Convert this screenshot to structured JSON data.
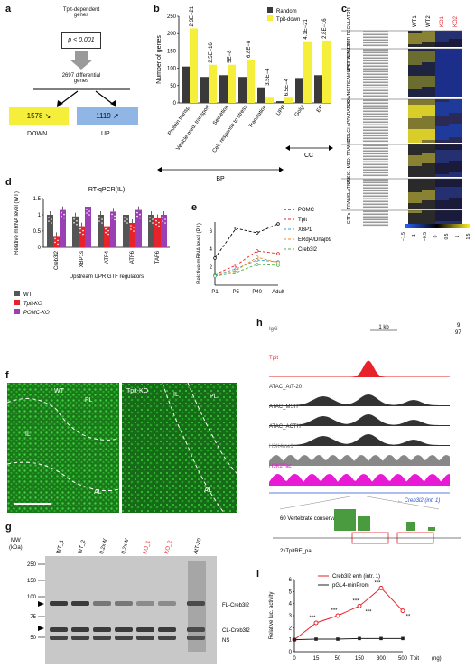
{
  "panel_labels": {
    "a": "a",
    "b": "b",
    "c": "c",
    "d": "d",
    "e": "e",
    "f": "f",
    "g": "g",
    "h": "h",
    "i": "i"
  },
  "panel_a": {
    "title_line1": "Tpit-dependent",
    "title_line2": "genes",
    "pvalue": "p < 0.001",
    "differential": "2697 differential",
    "differential2": "genes",
    "down_count": "1578 ↘",
    "up_count": "1119 ↗",
    "down_label": "DOWN",
    "up_label": "UP",
    "colors": {
      "down": "#f5ef3b",
      "up": "#8fb6e4"
    }
  },
  "chart_data": [
    {
      "type": "bar",
      "panel": "b",
      "categories": [
        "Protein transp.",
        "Vesicle-med. transport",
        "Secretion",
        "Cell. response to stress",
        "Translation",
        "UPR",
        "Golgi",
        "ER"
      ],
      "series": [
        {
          "name": "Random",
          "values": [
            105,
            75,
            80,
            75,
            45,
            5,
            72,
            80
          ],
          "color": "#3a3a3a"
        },
        {
          "name": "Tpit-down",
          "values": [
            215,
            110,
            110,
            125,
            15,
            15,
            178,
            180
          ],
          "color": "#f5ef3b"
        }
      ],
      "pvalues": [
        "2.3E−21",
        "2.5E−16",
        "5E−8",
        "6.8E−8",
        "3.5E−4",
        "6.5E−4",
        "4.1E−21",
        "2.8E−16"
      ],
      "ylabel": "Number of genes",
      "ylim": [
        0,
        250
      ],
      "yticks": [
        0,
        50,
        100,
        150,
        200,
        250
      ],
      "groups": [
        {
          "label": "BP"
        },
        {
          "label": "CC"
        }
      ],
      "legend": "top-right"
    },
    {
      "type": "bar",
      "panel": "d",
      "title": "RT-qPCR(IL)",
      "categories": [
        "Creb3l2",
        "XBP1s",
        "ATF4",
        "ATF6",
        "TAF6"
      ],
      "series": [
        {
          "name": "WT",
          "values": [
            1.0,
            0.95,
            1.0,
            1.0,
            1.0
          ],
          "color": "#555555"
        },
        {
          "name": "Tpit-KO",
          "values": [
            0.35,
            0.65,
            0.65,
            0.75,
            0.9
          ],
          "color": "#e8222a"
        },
        {
          "name": "POMC-KO",
          "values": [
            1.15,
            1.25,
            1.1,
            1.15,
            1.0
          ],
          "color": "#9b3fb5"
        }
      ],
      "ylabel": "Relative mRNA level (WT)",
      "xlabel": "Upstream UPR GTF regulators",
      "ylim": [
        0,
        1.5
      ],
      "yticks": [
        0,
        0.5,
        1,
        1.5
      ]
    },
    {
      "type": "line",
      "panel": "e",
      "x": [
        "P1",
        "P5",
        "P40",
        "Adult"
      ],
      "series": [
        {
          "name": "POMC",
          "values": [
            3.0,
            6.3,
            5.8,
            6.8
          ],
          "color": "#000000"
        },
        {
          "name": "Tpit",
          "values": [
            1.2,
            2.2,
            3.8,
            3.5
          ],
          "color": "#e8222a"
        },
        {
          "name": "XBP1",
          "values": [
            1.1,
            1.8,
            2.8,
            2.6
          ],
          "color": "#3aa0c8"
        },
        {
          "name": "ERdj4/Dnajb9",
          "values": [
            1.0,
            1.6,
            3.1,
            2.5
          ],
          "color": "#f08a1c"
        },
        {
          "name": "Creb3l2",
          "values": [
            1.0,
            1.4,
            2.3,
            2.2
          ],
          "color": "#4caf50"
        }
      ],
      "ylabel": "Relative mRNA level (P1)",
      "ylim": [
        0,
        7
      ],
      "yticks": [
        2,
        4,
        6
      ]
    },
    {
      "type": "line",
      "panel": "i",
      "x": [
        "0",
        "15",
        "50",
        "150",
        "300",
        "500"
      ],
      "series": [
        {
          "name": "Creb3l2 enh (intr. 1)",
          "values": [
            1.0,
            2.4,
            3.0,
            3.8,
            5.3,
            3.4
          ],
          "color": "#e8222a"
        },
        {
          "name": "pGL4-minProm",
          "values": [
            1.0,
            1.05,
            1.05,
            1.1,
            1.1,
            1.1
          ],
          "color": "#222222"
        }
      ],
      "significance": [
        "",
        "***",
        "***",
        "***",
        "***",
        "**"
      ],
      "significance_low": [
        "",
        "",
        "",
        "***",
        "",
        ""
      ],
      "xlabel": "Tpit (ng)",
      "ylabel": "Relative luc. activity",
      "ylim": [
        0,
        6
      ],
      "yticks": [
        0,
        1,
        2,
        3,
        4,
        5,
        6
      ]
    }
  ],
  "panel_b": {
    "bp": "BP",
    "cc": "CC",
    "legend_random": "Random",
    "legend_tpit": "Tpit-down"
  },
  "panel_c": {
    "columns": [
      "WT1",
      "WT2",
      "KO1",
      "KO2"
    ],
    "groups": [
      {
        "label": "UPSTREAM UPR REGULATORS"
      },
      {
        "label": "DOWNSTREAM UPR TARGETS"
      },
      {
        "label": "GOLGI APPARATUS"
      },
      {
        "label": "VESIC.-MED. TRANSP."
      },
      {
        "label": "TRANSLATION"
      },
      {
        "label": "GTFs"
      }
    ],
    "scale": [
      "−1.5",
      "−1",
      "−0.5",
      "0",
      "0.5",
      "1",
      "1.5"
    ]
  },
  "panel_d": {
    "legend": [
      "WT",
      "Tpit-KO",
      "POMC-KO"
    ]
  },
  "panel_e": {
    "legend": [
      "POMC",
      "Tpit",
      "XBP1",
      "ERdj4/Dnajb9",
      "Creb3l2"
    ]
  },
  "panel_f": {
    "wt": "WT",
    "ko": "Tpit-KO",
    "il": "IL",
    "pl": "PL",
    "al": "AL",
    "il2": "IL",
    "pl2": "PL",
    "al2": "AL"
  },
  "panel_g": {
    "mw": "MW",
    "kda": "(kDa)",
    "lanes": [
      "WT_1",
      "WT_2",
      "0.2xWT_1",
      "0.2xWT_2",
      "KO_1",
      "KO_2",
      "AtT-20"
    ],
    "markers": [
      "250",
      "150",
      "100",
      "75",
      "50"
    ],
    "fl": "FL-Creb3l2",
    "cl": "CL-Creb3l2",
    "ns": "NS"
  },
  "panel_h": {
    "tracks": [
      "IgG",
      "Tpit",
      "ATAC_AtT-20",
      "ATAC_MSH",
      "ATAC_ACTH",
      "H3K4me1",
      "H3K27ac"
    ],
    "scale": "1 kb",
    "range_top": "9",
    "range_bottom": "97",
    "gene": "← Creb3l2 (int. 1)",
    "conservation": "60 Vertebrate conservation",
    "pal": "2xTpitRE_pal"
  },
  "panel_i": {
    "legend": [
      "Creb3l2 enh (intr. 1)",
      "pGL4-minProm"
    ],
    "xlabel": "Tpit",
    "unit": "(ng)"
  }
}
